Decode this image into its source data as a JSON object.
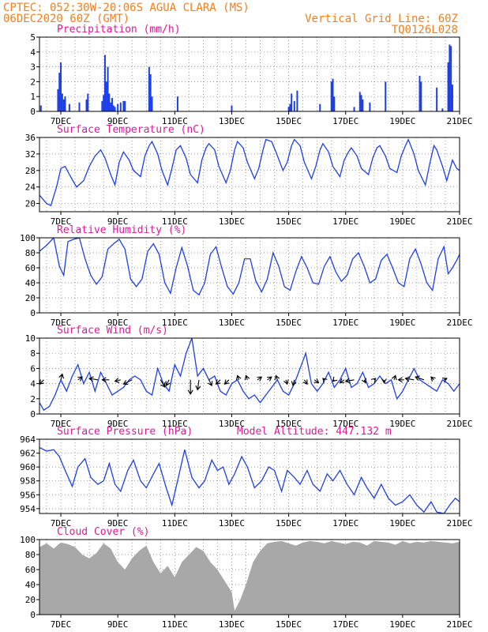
{
  "header": {
    "line1_left": "CPTEC:  052:30W-20:06S  AGUA CLARA (MS)",
    "line2_left": "06DEC2020 60Z (GMT)",
    "line1_right": "Vertical Grid Line: 60Z",
    "line2_right": "TQ0126L028"
  },
  "colors": {
    "header": "#f08020",
    "title": "#e0189a",
    "series": "#1f3fe6",
    "cloud": "#a8a8a8",
    "vector": "#000000",
    "grid": "#777777"
  },
  "x_axis": {
    "ticks": [
      "7DEC",
      "9DEC",
      "11DEC",
      "13DEC",
      "15DEC",
      "17DEC",
      "19DEC",
      "21DEC"
    ],
    "tick_days": [
      7,
      9,
      11,
      13,
      15,
      17,
      19,
      21
    ],
    "range_days": [
      6.25,
      21.0
    ],
    "grid_step_days": 0.5
  },
  "chart_data": [
    {
      "id": "precip",
      "type": "bar",
      "title": "Precipitation (mm/h)",
      "ylim": [
        0,
        5
      ],
      "yticks": [
        "0",
        "1",
        "2",
        "3",
        "4",
        "5"
      ],
      "grid": true,
      "x": [
        6.3,
        6.9,
        6.95,
        7.0,
        7.05,
        7.1,
        7.15,
        7.3,
        7.65,
        7.9,
        7.95,
        8.45,
        8.5,
        8.55,
        8.6,
        8.65,
        8.7,
        8.75,
        8.8,
        8.85,
        8.9,
        9.0,
        9.1,
        9.2,
        9.25,
        10.1,
        10.15,
        10.2,
        11.1,
        13.0,
        15.0,
        15.05,
        15.1,
        15.2,
        15.3,
        16.1,
        16.5,
        16.55,
        16.6,
        17.3,
        17.5,
        17.55,
        17.6,
        17.85,
        18.4,
        19.6,
        19.65,
        20.2,
        20.4,
        20.6,
        20.65,
        20.7,
        20.75
      ],
      "values": [
        0.4,
        1.5,
        2.6,
        3.3,
        1.2,
        0.8,
        1.0,
        0.5,
        0.6,
        0.8,
        1.2,
        0.7,
        1.1,
        3.8,
        2.0,
        3.0,
        1.2,
        0.6,
        0.9,
        0.4,
        0.3,
        0.5,
        0.6,
        0.7,
        0.7,
        3.0,
        2.5,
        1.0,
        1.0,
        0.4,
        0.3,
        0.5,
        1.2,
        0.7,
        1.4,
        0.5,
        2.0,
        2.2,
        1.0,
        0.3,
        1.3,
        1.1,
        0.8,
        0.6,
        2.0,
        2.4,
        2.0,
        1.6,
        0.2,
        3.3,
        4.5,
        4.4,
        1.8
      ]
    },
    {
      "id": "temp",
      "type": "line",
      "title": "Surface Temperature (nC)",
      "ylim": [
        18,
        36
      ],
      "yticks": [
        "20",
        "24",
        "28",
        "32",
        "36"
      ],
      "grid": true,
      "x": [
        6.25,
        6.5,
        6.65,
        6.85,
        7.0,
        7.15,
        7.3,
        7.55,
        7.8,
        8.0,
        8.2,
        8.4,
        8.55,
        8.75,
        8.9,
        9.05,
        9.2,
        9.4,
        9.55,
        9.8,
        9.95,
        10.1,
        10.2,
        10.4,
        10.55,
        10.75,
        10.9,
        11.05,
        11.2,
        11.4,
        11.55,
        11.8,
        11.95,
        12.1,
        12.2,
        12.4,
        12.55,
        12.8,
        12.95,
        13.1,
        13.2,
        13.4,
        13.55,
        13.8,
        13.95,
        14.1,
        14.2,
        14.4,
        14.55,
        14.8,
        14.95,
        15.1,
        15.2,
        15.4,
        15.55,
        15.8,
        15.95,
        16.1,
        16.2,
        16.4,
        16.55,
        16.8,
        16.95,
        17.1,
        17.2,
        17.4,
        17.55,
        17.8,
        17.95,
        18.1,
        18.2,
        18.4,
        18.55,
        18.8,
        18.95,
        19.1,
        19.2,
        19.4,
        19.55,
        19.8,
        19.95,
        20.1,
        20.2,
        20.4,
        20.55,
        20.75,
        20.9,
        21.0
      ],
      "values": [
        22.0,
        20.0,
        19.5,
        24.0,
        28.5,
        29.0,
        27.0,
        24.0,
        25.5,
        29.0,
        31.5,
        33.0,
        31.0,
        27.0,
        24.5,
        30.0,
        32.5,
        30.5,
        28.0,
        26.5,
        31.5,
        34.0,
        35.0,
        32.0,
        28.0,
        24.5,
        28.5,
        33.0,
        34.0,
        31.0,
        27.0,
        25.0,
        30.5,
        33.5,
        34.5,
        33.0,
        29.0,
        25.0,
        28.0,
        33.0,
        35.0,
        33.5,
        30.0,
        26.0,
        28.5,
        33.0,
        35.5,
        35.0,
        32.5,
        28.0,
        30.0,
        34.0,
        35.5,
        34.0,
        30.0,
        26.0,
        29.0,
        33.0,
        34.5,
        32.5,
        29.0,
        26.5,
        30.5,
        32.5,
        33.5,
        31.5,
        28.5,
        27.0,
        31.0,
        33.5,
        34.0,
        31.5,
        28.5,
        27.5,
        31.5,
        34.0,
        35.5,
        32.0,
        28.0,
        24.5,
        29.5,
        34.0,
        33.0,
        29.0,
        25.5,
        30.5,
        28.5,
        28.0
      ]
    },
    {
      "id": "rh",
      "type": "line",
      "title": "Relative Humidity (%)",
      "ylim": [
        0,
        100
      ],
      "yticks": [
        "0",
        "20",
        "40",
        "60",
        "80",
        "100"
      ],
      "grid": true,
      "x": [
        6.25,
        6.5,
        6.75,
        6.95,
        7.1,
        7.25,
        7.45,
        7.65,
        7.85,
        8.05,
        8.25,
        8.45,
        8.65,
        8.85,
        9.05,
        9.25,
        9.45,
        9.65,
        9.85,
        10.05,
        10.25,
        10.45,
        10.65,
        10.85,
        11.05,
        11.25,
        11.45,
        11.65,
        11.85,
        12.05,
        12.25,
        12.45,
        12.65,
        12.85,
        13.05,
        13.25,
        13.45,
        13.65,
        13.85,
        14.05,
        14.25,
        14.45,
        14.65,
        14.85,
        15.05,
        15.25,
        15.45,
        15.65,
        15.85,
        16.05,
        16.25,
        16.45,
        16.65,
        16.85,
        17.05,
        17.25,
        17.45,
        17.65,
        17.85,
        18.05,
        18.25,
        18.45,
        18.65,
        18.85,
        19.05,
        19.25,
        19.45,
        19.65,
        19.85,
        20.05,
        20.25,
        20.45,
        20.6,
        20.75,
        20.9,
        21.0
      ],
      "values": [
        82,
        90,
        100,
        62,
        50,
        95,
        98,
        100,
        72,
        50,
        38,
        48,
        85,
        92,
        98,
        85,
        45,
        35,
        45,
        82,
        92,
        78,
        40,
        26,
        60,
        87,
        62,
        30,
        24,
        40,
        78,
        88,
        60,
        35,
        25,
        40,
        72,
        72,
        42,
        28,
        45,
        80,
        62,
        35,
        30,
        55,
        75,
        60,
        40,
        38,
        62,
        75,
        55,
        42,
        50,
        72,
        80,
        62,
        40,
        45,
        70,
        78,
        60,
        40,
        35,
        72,
        85,
        65,
        40,
        30,
        72,
        88,
        52,
        60,
        70,
        78
      ]
    },
    {
      "id": "wind",
      "type": "line",
      "title": "Surface Wind (m/s)",
      "ylim": [
        0,
        10
      ],
      "yticks": [
        "0",
        "2",
        "4",
        "6",
        "8",
        "10"
      ],
      "grid": true,
      "x": [
        6.25,
        6.4,
        6.6,
        6.8,
        7.0,
        7.2,
        7.4,
        7.6,
        7.8,
        8.0,
        8.2,
        8.4,
        8.6,
        8.8,
        9.0,
        9.2,
        9.4,
        9.6,
        9.8,
        10.0,
        10.2,
        10.4,
        10.6,
        10.8,
        11.0,
        11.2,
        11.4,
        11.6,
        11.8,
        12.0,
        12.2,
        12.4,
        12.6,
        12.8,
        13.0,
        13.2,
        13.4,
        13.6,
        13.8,
        14.0,
        14.2,
        14.4,
        14.6,
        14.8,
        15.0,
        15.2,
        15.4,
        15.6,
        15.8,
        16.0,
        16.2,
        16.4,
        16.6,
        16.8,
        17.0,
        17.2,
        17.4,
        17.6,
        17.8,
        18.0,
        18.2,
        18.4,
        18.6,
        18.8,
        19.0,
        19.2,
        19.4,
        19.6,
        19.8,
        20.0,
        20.2,
        20.4,
        20.6,
        20.8,
        21.0
      ],
      "values": [
        1.5,
        0.5,
        1.0,
        2.5,
        4.5,
        3.0,
        5.0,
        6.5,
        4.0,
        5.5,
        3.0,
        5.5,
        4.0,
        2.5,
        3.0,
        3.5,
        4.5,
        5.0,
        4.5,
        3.0,
        2.5,
        6.0,
        4.0,
        3.0,
        6.5,
        5.0,
        8.0,
        10.0,
        5.0,
        6.0,
        4.5,
        5.0,
        3.0,
        2.5,
        4.0,
        4.5,
        3.0,
        2.0,
        2.5,
        1.5,
        2.5,
        3.5,
        4.5,
        3.0,
        2.5,
        4.0,
        6.0,
        8.0,
        4.0,
        3.0,
        4.0,
        5.5,
        3.5,
        4.5,
        6.0,
        3.5,
        4.0,
        5.5,
        3.5,
        4.0,
        5.0,
        4.0,
        4.5,
        2.0,
        3.0,
        4.5,
        6.0,
        4.5,
        4.0,
        3.5,
        3.0,
        4.5,
        4.0,
        3.0,
        4.0
      ]
    },
    {
      "id": "pres",
      "type": "line",
      "title": "Surface Pressure (hPa)",
      "annotation": "Model Altitude: 447.132 m",
      "ylim": [
        953.3,
        964
      ],
      "yticks": [
        "954",
        "956",
        "958",
        "960",
        "962",
        "964"
      ],
      "grid": true,
      "x": [
        6.25,
        6.5,
        6.75,
        6.95,
        7.15,
        7.4,
        7.6,
        7.85,
        8.05,
        8.3,
        8.5,
        8.7,
        8.9,
        9.1,
        9.35,
        9.55,
        9.8,
        10.0,
        10.25,
        10.45,
        10.7,
        10.9,
        11.1,
        11.35,
        11.6,
        11.85,
        12.05,
        12.3,
        12.5,
        12.7,
        12.9,
        13.1,
        13.35,
        13.55,
        13.8,
        14.05,
        14.3,
        14.5,
        14.75,
        14.95,
        15.2,
        15.4,
        15.65,
        15.85,
        16.1,
        16.35,
        16.55,
        16.8,
        17.05,
        17.3,
        17.55,
        17.75,
        18.0,
        18.25,
        18.5,
        18.75,
        19.0,
        19.25,
        19.5,
        19.75,
        20.0,
        20.2,
        20.45,
        20.65,
        20.85,
        21.0
      ],
      "values": [
        962.8,
        962.3,
        962.5,
        961.5,
        959.5,
        957.2,
        960.0,
        961.2,
        958.5,
        957.5,
        958.0,
        960.5,
        957.5,
        956.5,
        959.5,
        961.0,
        958.0,
        957.0,
        959.0,
        960.5,
        957.0,
        954.5,
        958.0,
        962.5,
        958.5,
        957.0,
        958.0,
        961.0,
        959.5,
        960.0,
        957.5,
        959.0,
        961.5,
        960.0,
        957.0,
        958.0,
        960.0,
        959.5,
        956.5,
        959.5,
        958.5,
        957.5,
        959.5,
        957.5,
        956.5,
        959.0,
        958.0,
        959.5,
        957.5,
        956.0,
        958.5,
        957.0,
        955.5,
        957.5,
        955.5,
        954.5,
        955.0,
        956.0,
        954.5,
        953.5,
        955.0,
        953.5,
        953.0,
        954.5,
        955.5,
        955.0
      ]
    },
    {
      "id": "cloud",
      "type": "area",
      "title": "Cloud Cover (%)",
      "ylim": [
        0,
        100
      ],
      "yticks": [
        "0",
        "20",
        "40",
        "60",
        "80",
        "100"
      ],
      "grid": true,
      "x": [
        6.25,
        6.5,
        6.75,
        7.0,
        7.25,
        7.5,
        7.75,
        8.0,
        8.25,
        8.5,
        8.75,
        9.0,
        9.25,
        9.5,
        9.75,
        10.0,
        10.25,
        10.5,
        10.75,
        11.0,
        11.25,
        11.5,
        11.75,
        12.0,
        12.25,
        12.5,
        12.75,
        13.0,
        13.1,
        13.3,
        13.5,
        13.75,
        14.0,
        14.25,
        14.5,
        14.75,
        15.0,
        15.25,
        15.5,
        15.75,
        16.0,
        16.25,
        16.5,
        16.75,
        17.0,
        17.25,
        17.5,
        17.75,
        18.0,
        18.25,
        18.5,
        18.75,
        19.0,
        19.25,
        19.5,
        19.75,
        20.0,
        20.25,
        20.5,
        20.75,
        21.0
      ],
      "values": [
        90,
        95,
        88,
        96,
        94,
        90,
        80,
        75,
        82,
        95,
        88,
        70,
        60,
        75,
        85,
        92,
        70,
        55,
        65,
        50,
        70,
        80,
        90,
        85,
        70,
        60,
        45,
        30,
        5,
        20,
        40,
        70,
        85,
        95,
        97,
        98,
        95,
        92,
        96,
        98,
        97,
        95,
        98,
        96,
        94,
        97,
        96,
        92,
        98,
        97,
        96,
        93,
        98,
        95,
        97,
        96,
        98,
        97,
        96,
        95,
        97
      ]
    }
  ],
  "wind_vectors": {
    "x": [
      6.4,
      7.0,
      7.6,
      8.3,
      8.7,
      9.1,
      9.5,
      10.5,
      10.8,
      11.55,
      11.85,
      12.2,
      12.6,
      12.9,
      13.25,
      13.55,
      13.9,
      14.25,
      14.6,
      14.9,
      15.2,
      15.55,
      15.9,
      16.25,
      16.6,
      16.95,
      17.3,
      17.65,
      18.0,
      18.35,
      18.7,
      19.05,
      19.4,
      19.75,
      20.1,
      20.45
    ],
    "u": [
      -0.3,
      0.1,
      0.3,
      -0.6,
      -0.5,
      -0.4,
      -0.6,
      0.3,
      -0.2,
      0.0,
      -0.1,
      0.2,
      -0.3,
      -0.3,
      -0.1,
      -0.1,
      0.3,
      0.3,
      -0.1,
      0.1,
      -0.1,
      0.2,
      0.3,
      -0.1,
      -0.1,
      -0.3,
      -0.6,
      0.1,
      0.1,
      0.0,
      0.1,
      -0.4,
      -0.6,
      -0.6,
      -0.2,
      0.2
    ],
    "v": [
      -0.3,
      0.4,
      0.2,
      0.1,
      0.0,
      -0.1,
      -0.3,
      -0.5,
      -0.4,
      -1.0,
      -0.7,
      -0.4,
      -0.3,
      -0.3,
      0.3,
      0.3,
      0.2,
      0.2,
      0.3,
      -0.3,
      -0.4,
      -0.3,
      -0.2,
      0.1,
      -0.1,
      -0.2,
      -0.1,
      -0.2,
      0.1,
      -0.2,
      0.3,
      0.0,
      0.1,
      0.2,
      0.2,
      0.1
    ]
  }
}
